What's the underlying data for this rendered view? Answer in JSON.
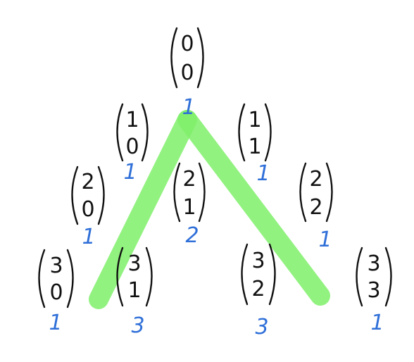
{
  "diagram": {
    "type": "pascal-triangle-binomial-coefficients",
    "highlight_color": "#7ff06a",
    "ink_color": "#111111",
    "value_color": "#2f6fd8",
    "rows": [
      {
        "row": 0,
        "cells": [
          {
            "n": "0",
            "k": "0",
            "value": "1"
          }
        ]
      },
      {
        "row": 1,
        "cells": [
          {
            "n": "1",
            "k": "0",
            "value": "1"
          },
          {
            "n": "1",
            "k": "1",
            "value": "1"
          }
        ]
      },
      {
        "row": 2,
        "cells": [
          {
            "n": "2",
            "k": "0",
            "value": "1"
          },
          {
            "n": "2",
            "k": "1",
            "value": "2"
          },
          {
            "n": "2",
            "k": "2",
            "value": "1"
          }
        ]
      },
      {
        "row": 3,
        "cells": [
          {
            "n": "3",
            "k": "0",
            "value": "1"
          },
          {
            "n": "3",
            "k": "1",
            "value": "3"
          },
          {
            "n": "3",
            "k": "2",
            "value": "3"
          },
          {
            "n": "3",
            "k": "3",
            "value": "1"
          }
        ]
      }
    ]
  }
}
